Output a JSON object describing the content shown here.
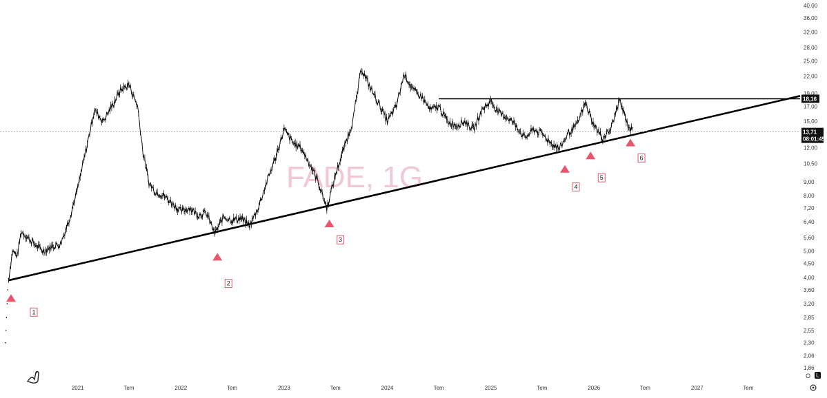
{
  "chart_data": {
    "type": "line",
    "watermark": "FADE, 1G",
    "y_scale": "log",
    "ylim": [
      1.84,
      40
    ],
    "y_ticks": [
      "40,00",
      "36,00",
      "32,00",
      "28,00",
      "25,00",
      "22,00",
      "19,00",
      "17,00",
      "15,00",
      "13,71",
      "12,00",
      "10,50",
      "9,00",
      "8,00",
      "7,20",
      "6,40",
      "5,60",
      "5,00",
      "4,50",
      "4,00",
      "3,60",
      "3,20",
      "2,85",
      "2,55",
      "2,30",
      "2,06",
      "1,86"
    ],
    "x_range": [
      "2020-04-01",
      "2027-12-31"
    ],
    "x_ticks": [
      {
        "date": "2021-01-01",
        "label": "2021"
      },
      {
        "date": "2021-07-01",
        "label": "Tem"
      },
      {
        "date": "2022-01-01",
        "label": "2022"
      },
      {
        "date": "2022-07-01",
        "label": "Tem"
      },
      {
        "date": "2023-01-01",
        "label": "2023"
      },
      {
        "date": "2023-07-01",
        "label": "Tem"
      },
      {
        "date": "2024-01-01",
        "label": "2024"
      },
      {
        "date": "2024-07-01",
        "label": "Tem"
      },
      {
        "date": "2025-01-01",
        "label": "2025"
      },
      {
        "date": "2025-07-01",
        "label": "Tem"
      },
      {
        "date": "2026-01-01",
        "label": "2026"
      },
      {
        "date": "2026-07-01",
        "label": "Tem"
      },
      {
        "date": "2027-01-01",
        "label": "2027"
      },
      {
        "date": "2027-07-01",
        "label": "Tem"
      }
    ],
    "series": [
      {
        "values": [
          [
            "2020-05-01",
            3.9
          ],
          [
            "2020-05-15",
            5.0
          ],
          [
            "2020-06-01",
            4.8
          ],
          [
            "2020-06-15",
            5.9
          ],
          [
            "2020-07-01",
            5.7
          ],
          [
            "2020-08-01",
            5.3
          ],
          [
            "2020-09-01",
            5.0
          ],
          [
            "2020-10-01",
            5.2
          ],
          [
            "2020-11-01",
            5.3
          ],
          [
            "2020-12-01",
            6.5
          ],
          [
            "2021-01-01",
            8.5
          ],
          [
            "2021-02-01",
            12.0
          ],
          [
            "2021-03-01",
            16.5
          ],
          [
            "2021-04-01",
            15.0
          ],
          [
            "2021-05-01",
            17.0
          ],
          [
            "2021-06-01",
            19.5
          ],
          [
            "2021-07-01",
            20.5
          ],
          [
            "2021-08-01",
            17.0
          ],
          [
            "2021-08-20",
            11.5
          ],
          [
            "2021-09-10",
            8.9
          ],
          [
            "2021-10-01",
            8.3
          ],
          [
            "2021-11-01",
            8.0
          ],
          [
            "2021-12-01",
            7.5
          ],
          [
            "2022-01-01",
            7.0
          ],
          [
            "2022-02-01",
            7.2
          ],
          [
            "2022-03-01",
            6.8
          ],
          [
            "2022-04-01",
            6.9
          ],
          [
            "2022-05-01",
            5.8
          ],
          [
            "2022-06-01",
            6.7
          ],
          [
            "2022-07-01",
            6.5
          ],
          [
            "2022-08-01",
            6.6
          ],
          [
            "2022-09-01",
            6.2
          ],
          [
            "2022-10-01",
            7.2
          ],
          [
            "2022-11-01",
            9.0
          ],
          [
            "2022-12-01",
            11.0
          ],
          [
            "2023-01-01",
            14.0
          ],
          [
            "2023-02-01",
            12.5
          ],
          [
            "2023-03-01",
            12.0
          ],
          [
            "2023-04-01",
            10.5
          ],
          [
            "2023-05-01",
            9.0
          ],
          [
            "2023-06-01",
            7.2
          ],
          [
            "2023-07-01",
            9.5
          ],
          [
            "2023-08-01",
            12.0
          ],
          [
            "2023-09-01",
            15.0
          ],
          [
            "2023-10-01",
            23.5
          ],
          [
            "2023-11-01",
            20.0
          ],
          [
            "2023-12-01",
            17.5
          ],
          [
            "2024-01-01",
            15.0
          ],
          [
            "2024-02-01",
            17.0
          ],
          [
            "2024-03-01",
            22.5
          ],
          [
            "2024-04-01",
            19.5
          ],
          [
            "2024-05-01",
            18.5
          ],
          [
            "2024-06-01",
            16.5
          ],
          [
            "2024-07-01",
            17.0
          ],
          [
            "2024-08-01",
            15.0
          ],
          [
            "2024-09-01",
            14.5
          ],
          [
            "2024-10-01",
            15.0
          ],
          [
            "2024-11-01",
            14.0
          ],
          [
            "2024-12-01",
            16.5
          ],
          [
            "2025-01-01",
            17.8
          ],
          [
            "2025-02-01",
            16.0
          ],
          [
            "2025-03-01",
            15.5
          ],
          [
            "2025-04-01",
            14.5
          ],
          [
            "2025-05-01",
            13.0
          ],
          [
            "2025-06-01",
            14.0
          ],
          [
            "2025-07-01",
            13.5
          ],
          [
            "2025-08-01",
            12.5
          ],
          [
            "2025-09-01",
            11.9
          ],
          [
            "2025-10-01",
            13.5
          ],
          [
            "2025-11-01",
            14.5
          ],
          [
            "2025-12-01",
            17.5
          ],
          [
            "2026-01-01",
            14.5
          ],
          [
            "2026-02-01",
            13.0
          ],
          [
            "2026-03-01",
            14.0
          ],
          [
            "2026-04-01",
            18.0
          ],
          [
            "2026-05-01",
            14.5
          ],
          [
            "2026-05-20",
            13.71
          ]
        ]
      }
    ],
    "current_price": "13,71",
    "countdown": "08:01:45",
    "resistance_label": "18,16",
    "annotations": {
      "resistance": {
        "value": 18.16,
        "from": "2024-07-01",
        "to": "2027-12-31"
      },
      "support_trendline": {
        "from": [
          "2020-05-01",
          3.9
        ],
        "to": [
          "2027-12-31",
          18.6
        ]
      },
      "markers": [
        {
          "label": "1",
          "date": "2020-05-10",
          "triangle_value": 3.35,
          "box_value": 2.98
        },
        {
          "label": "2",
          "date": "2022-05-10",
          "triangle_value": 4.75,
          "box_value": 3.8
        },
        {
          "label": "3",
          "date": "2023-06-10",
          "triangle_value": 6.3,
          "box_value": 5.5
        },
        {
          "label": "4",
          "date": "2025-09-20",
          "triangle_value": 10.0,
          "box_value": 8.6
        },
        {
          "label": "5",
          "date": "2025-12-20",
          "triangle_value": 11.2,
          "box_value": 9.3
        },
        {
          "label": "6",
          "date": "2026-05-10",
          "triangle_value": 12.5,
          "box_value": 11.0
        }
      ]
    },
    "colors": {
      "price": "#000000",
      "trendline": "#000000",
      "marker": "#e8566d",
      "grid_dash": "#999999"
    }
  },
  "controls": {
    "scale_o": "O",
    "scale_l": "L"
  }
}
